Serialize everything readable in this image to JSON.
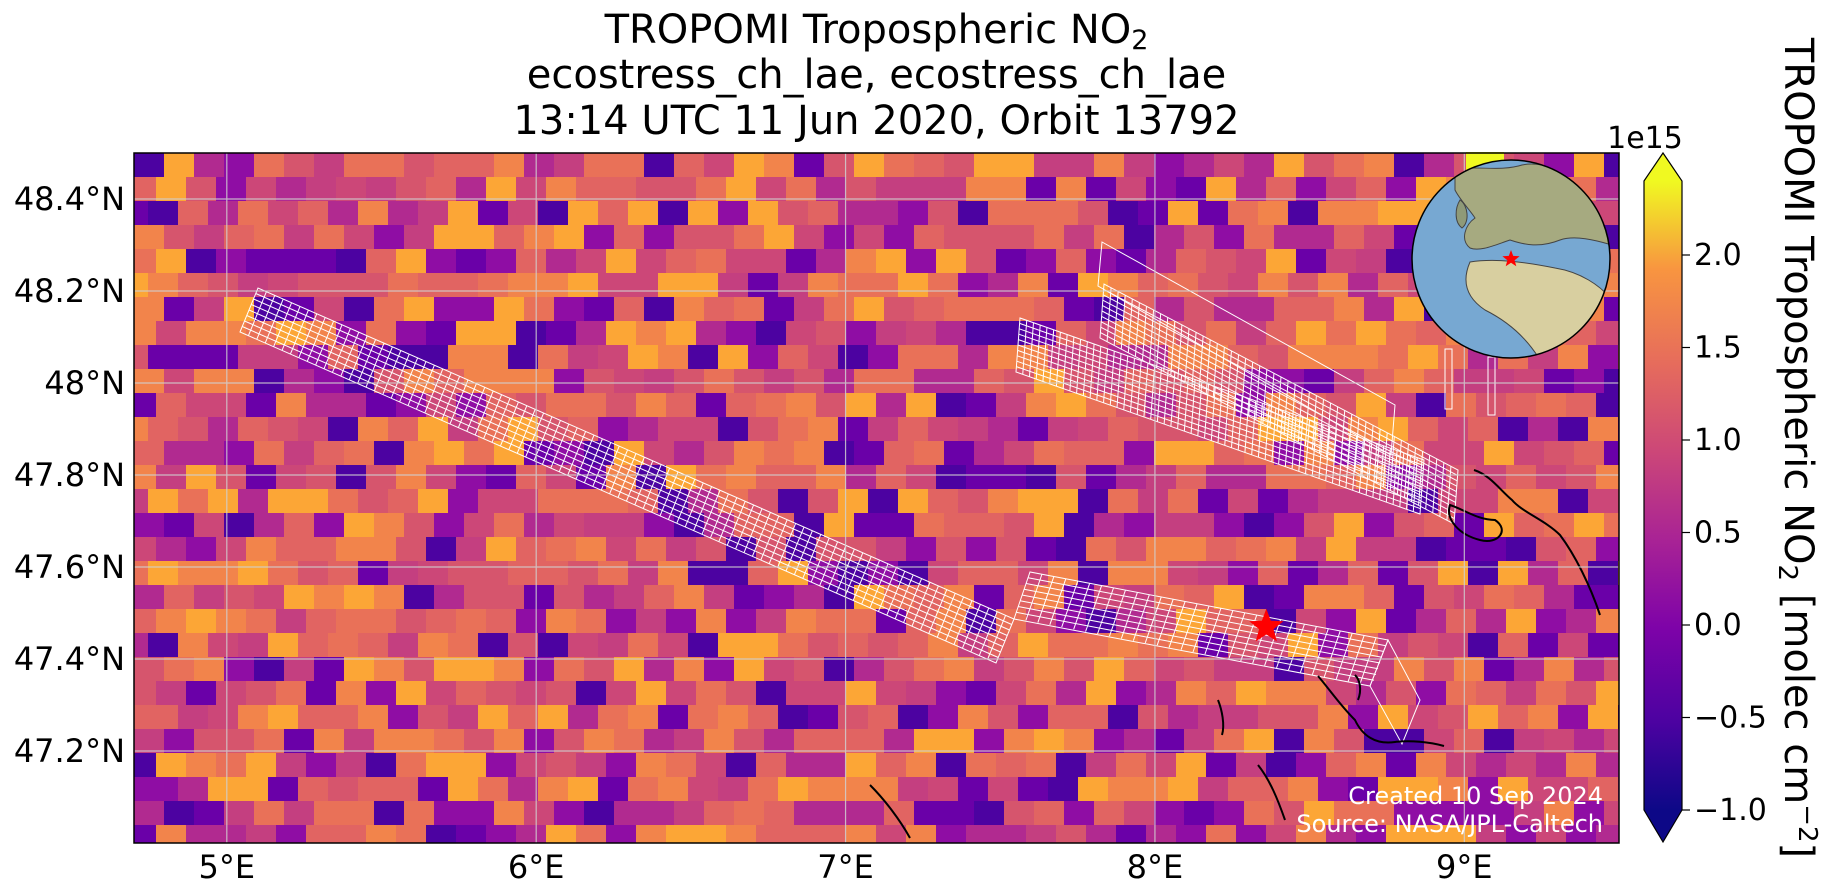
{
  "title": {
    "line1_main": "TROPOMI Tropospheric NO",
    "line1_sub": "2",
    "line2": "ecostress_ch_lae, ecostress_ch_lae",
    "line3": "13:14 UTC 11 Jun 2020, Orbit 13792"
  },
  "annotations": {
    "created": "Created 10 Sep 2024",
    "source": "Source: NASA/JPL-Caltech"
  },
  "map": {
    "lon_range": [
      4.7,
      9.5
    ],
    "lat_range": [
      47.0,
      48.5
    ],
    "x_ticks": [
      {
        "value": 5,
        "label": "5°E"
      },
      {
        "value": 6,
        "label": "6°E"
      },
      {
        "value": 7,
        "label": "7°E"
      },
      {
        "value": 8,
        "label": "8°E"
      },
      {
        "value": 9,
        "label": "9°E"
      }
    ],
    "y_ticks": [
      {
        "value": 47.2,
        "label": "47.2°N"
      },
      {
        "value": 47.4,
        "label": "47.4°N"
      },
      {
        "value": 47.6,
        "label": "47.6°N"
      },
      {
        "value": 47.8,
        "label": "47.8°N"
      },
      {
        "value": 48.0,
        "label": "48°N"
      },
      {
        "value": 48.2,
        "label": "48.2°N"
      },
      {
        "value": 48.4,
        "label": "48.4°N"
      }
    ],
    "gridlines": true,
    "site_marker": {
      "lon": 8.36,
      "lat": 47.47,
      "color": "#ff0000",
      "shape": "star"
    },
    "inset_globe": {
      "position": "top-right",
      "marker_color": "#ff0000",
      "shape": "star"
    },
    "ecostress_swaths": {
      "line_color": "#ffffff",
      "count": 4
    }
  },
  "colorbar": {
    "label_main": "TROPOMI Tropospheric NO",
    "label_sub": "2",
    "label_units": " [molec cm",
    "label_sup": "−2",
    "label_close": "]",
    "multiplier": "1e15",
    "range": [
      -1.0,
      2.4
    ],
    "colormap": "plasma",
    "extend": "both",
    "ticks": [
      {
        "value": -1.0,
        "label": "−1.0"
      },
      {
        "value": -0.5,
        "label": "−0.5"
      },
      {
        "value": 0.0,
        "label": "0.0"
      },
      {
        "value": 0.5,
        "label": "0.5"
      },
      {
        "value": 1.0,
        "label": "1.0"
      },
      {
        "value": 1.5,
        "label": "1.5"
      },
      {
        "value": 2.0,
        "label": "2.0"
      }
    ]
  }
}
